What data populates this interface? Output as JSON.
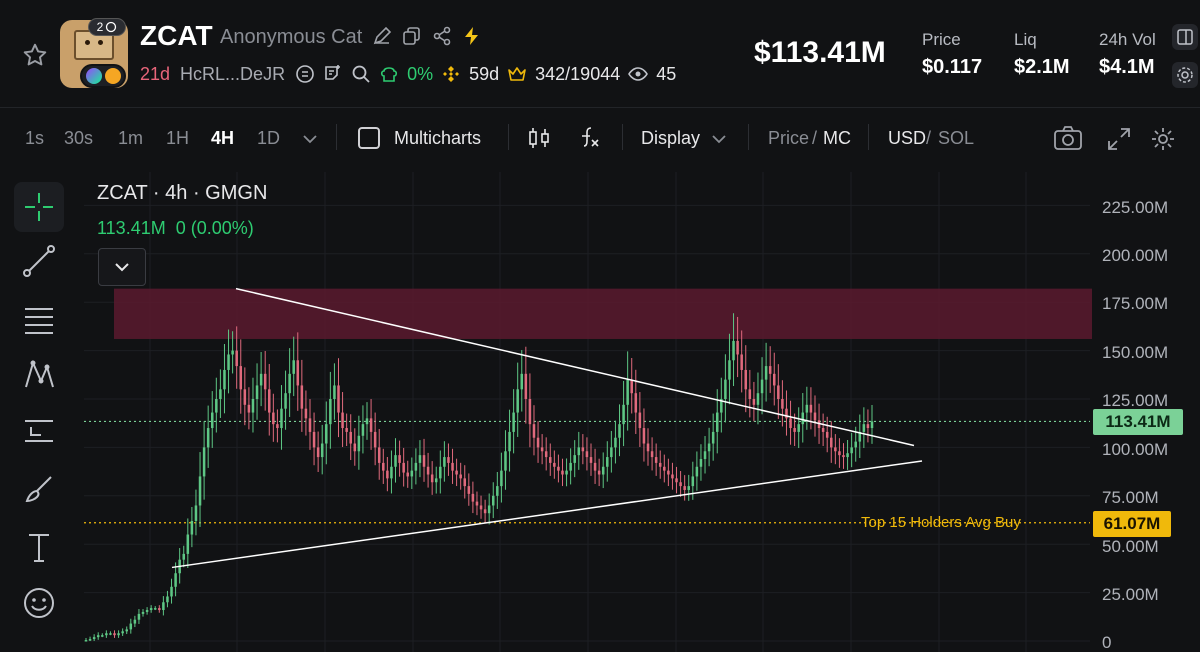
{
  "token": {
    "ticker": "ZCAT",
    "name": "Anonymous Cat",
    "age": "21d",
    "address": "HcRL...DeJR",
    "dev_pct": "0%",
    "holding_days": "59d",
    "holders": "342/19044",
    "watchers": "45",
    "avatar_badge": "2"
  },
  "header": {
    "market_cap": "$113.41M",
    "stats": [
      {
        "label": "Price",
        "value": "$0.117"
      },
      {
        "label": "Liq",
        "value": "$2.1M"
      },
      {
        "label": "24h Vol",
        "value": "$4.1M"
      }
    ]
  },
  "toolbar": {
    "timeframes": [
      "1s",
      "30s",
      "1m",
      "1H",
      "4H",
      "1D"
    ],
    "active_timeframe": "4H",
    "multicharts": "Multicharts",
    "display": "Display",
    "price_mode": "Price",
    "mc_mode": "MC",
    "usd": "USD",
    "sol": "SOL"
  },
  "chart": {
    "title": "ZCAT · 4h · GMGN",
    "last_value": "113.41M",
    "change": "0 (0.00%)",
    "current_tag": "113.41M",
    "holders_label": "Top 15 Holders Avg Buy",
    "holders_tag": "61.07M",
    "y_ticks": [
      "225.00M",
      "200.00M",
      "175.00M",
      "150.00M",
      "125.00M",
      "100.00M",
      "75.00M",
      "50.00M",
      "25.00M",
      "0"
    ]
  },
  "chart_data": {
    "type": "candlestick",
    "y_unit": "M",
    "ylim": [
      0,
      235
    ],
    "current_value": 113.41,
    "reference_lines": [
      {
        "label": "Top 15 Holders Avg Buy",
        "value": 61.07,
        "color": "#f0b90b"
      },
      {
        "label": "current",
        "value": 113.41,
        "color": "#7bd197"
      }
    ],
    "resistance_zone": [
      156,
      182
    ],
    "closes": [
      0.5,
      1,
      2,
      3,
      3,
      4,
      4,
      3,
      4,
      5,
      6,
      9,
      11,
      14,
      15,
      16,
      17,
      17,
      16,
      20,
      23,
      28,
      35,
      42,
      45,
      55,
      62,
      70,
      85,
      100,
      110,
      118,
      125,
      130,
      140,
      148,
      150,
      142,
      130,
      122,
      118,
      125,
      132,
      138,
      130,
      118,
      112,
      110,
      120,
      128,
      138,
      145,
      132,
      120,
      115,
      108,
      100,
      95,
      102,
      112,
      125,
      132,
      118,
      110,
      108,
      102,
      98,
      106,
      112,
      115,
      108,
      100,
      92,
      88,
      84,
      90,
      96,
      92,
      87,
      85,
      88,
      92,
      96,
      90,
      86,
      82,
      84,
      90,
      95,
      92,
      88,
      86,
      84,
      80,
      76,
      72,
      70,
      68,
      66,
      70,
      75,
      80,
      88,
      98,
      108,
      118,
      130,
      138,
      125,
      112,
      105,
      100,
      98,
      95,
      92,
      90,
      88,
      86,
      88,
      92,
      96,
      100,
      98,
      95,
      92,
      88,
      86,
      90,
      95,
      100,
      105,
      112,
      122,
      135,
      128,
      118,
      110,
      102,
      98,
      95,
      92,
      90,
      88,
      86,
      84,
      82,
      80,
      78,
      80,
      85,
      90,
      94,
      98,
      102,
      108,
      118,
      125,
      135,
      145,
      155,
      148,
      140,
      130,
      125,
      122,
      128,
      135,
      142,
      138,
      132,
      125,
      120,
      115,
      110,
      108,
      112,
      118,
      122,
      118,
      114,
      110,
      108,
      105,
      100,
      98,
      96,
      95,
      97,
      100,
      103,
      108,
      112,
      110,
      113.41
    ]
  }
}
